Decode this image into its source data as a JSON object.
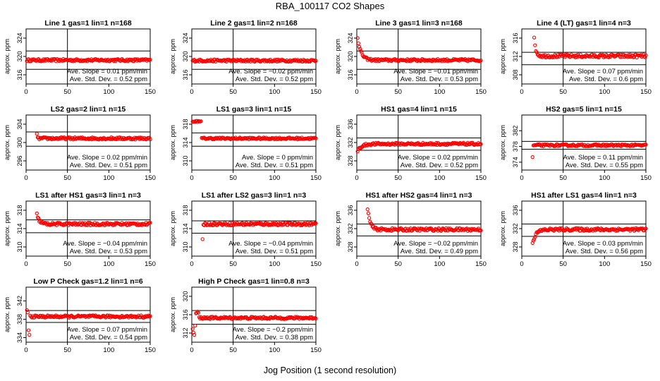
{
  "title": "RBA_100117  CO2 Shapes",
  "xlabel": "Jog Position (1 second resolution)",
  "ylabel": "approx. ppm",
  "colors": {
    "points": "#ff0000",
    "axes": "#000000",
    "background": "#ffffff"
  },
  "chart_data": [
    {
      "type": "scatter",
      "title": "Line 1 gas=1 lin=1 n=168",
      "xlim": [
        0,
        150
      ],
      "xticks": [
        0,
        50,
        100,
        150
      ],
      "ylim": [
        314,
        326
      ],
      "yticks": [
        316,
        320,
        324
      ],
      "hlines": [
        321.2,
        317.2
      ],
      "vline": 50,
      "slope_text": "Ave. Slope =  0.01  ppm/min",
      "std_text": "Ave. Std. Dev. =  0.52  ppm",
      "pattern": "flat",
      "start": 1,
      "level": 319.2,
      "noise": 0.25
    },
    {
      "type": "scatter",
      "title": "Line 2 gas=1 lin=2 n=168",
      "xlim": [
        0,
        150
      ],
      "xticks": [
        0,
        50,
        100,
        150
      ],
      "ylim": [
        314,
        326
      ],
      "yticks": [
        316,
        320,
        324
      ],
      "hlines": [
        321.2,
        317.2
      ],
      "vline": 50,
      "slope_text": "Ave. Slope =  −0.02  ppm/min",
      "std_text": "Ave. Std. Dev. =  0.52  ppm",
      "pattern": "flat",
      "start": 1,
      "level": 319.1,
      "noise": 0.25
    },
    {
      "type": "scatter",
      "title": "Line 3 gas=1 lin=3 n=168",
      "xlim": [
        0,
        150
      ],
      "xticks": [
        0,
        50,
        100,
        150
      ],
      "ylim": [
        314,
        326
      ],
      "yticks": [
        316,
        320,
        324
      ],
      "hlines": [
        321.2,
        317.2
      ],
      "vline": 50,
      "slope_text": "Ave. Slope =  −0.01  ppm/min",
      "std_text": "Ave. Std. Dev. =  0.53  ppm",
      "pattern": "decay",
      "start": 1,
      "level": 319.2,
      "noise": 0.25,
      "initial": 324.2,
      "tau": 4
    },
    {
      "type": "scatter",
      "title": "Line 4 (LT) gas=1 lin=4 n=3",
      "xlim": [
        0,
        150
      ],
      "xticks": [
        0,
        50,
        100,
        150
      ],
      "ylim": [
        306,
        318
      ],
      "yticks": [
        308,
        312,
        316
      ],
      "hlines": [
        312.9,
        310.2
      ],
      "vline": 50,
      "slope_text": "Ave. Slope =  0.07  ppm/min",
      "std_text": "Ave. Std. Dev. =  0.6  ppm",
      "pattern": "decay",
      "start": 15,
      "level": 312.1,
      "noise": 0.35,
      "initial": 315.8,
      "tau": 2
    },
    {
      "type": "scatter",
      "title": "LS2 gas=2 lin=1 n=15",
      "xlim": [
        0,
        150
      ],
      "xticks": [
        0,
        50,
        100,
        150
      ],
      "ylim": [
        294,
        306
      ],
      "yticks": [
        296,
        300,
        304
      ],
      "hlines": [
        302.3,
        299.2
      ],
      "vline": 50,
      "slope_text": "Ave. Slope =  0.02  ppm/min",
      "std_text": "Ave. Std. Dev. =  0.51  ppm",
      "pattern": "spike",
      "start": 13,
      "level": 300.9,
      "noise": 0.25,
      "initial": 301.9
    },
    {
      "type": "scatter",
      "title": "LS1 gas=3 lin=1 n=15",
      "xlim": [
        0,
        150
      ],
      "xticks": [
        0,
        50,
        100,
        150
      ],
      "ylim": [
        308,
        320
      ],
      "yticks": [
        310,
        314,
        318
      ],
      "hlines": [
        316.1,
        313.2
      ],
      "vline": 50,
      "slope_text": "Ave. Slope =  0  ppm/min",
      "std_text": "Ave. Std. Dev. =  0.51  ppm",
      "pattern": "step",
      "start": 1,
      "level": 314.9,
      "noise": 0.2,
      "initial": 318.6,
      "stepEnd": 11
    },
    {
      "type": "scatter",
      "title": "HS1 gas=4 lin=1 n=15",
      "xlim": [
        0,
        150
      ],
      "xticks": [
        0,
        50,
        100,
        150
      ],
      "ylim": [
        326,
        338
      ],
      "yticks": [
        328,
        332,
        336
      ],
      "hlines": [
        333.0,
        330.3
      ],
      "vline": 50,
      "slope_text": "Ave. Slope =  0.02  ppm/min",
      "std_text": "Ave. Std. Dev. =  0.52  ppm",
      "pattern": "rise",
      "start": 1,
      "level": 331.7,
      "noise": 0.25,
      "initial": 330.2,
      "tau": 5
    },
    {
      "type": "scatter",
      "title": "HS2 gas=5 lin=1 n=15",
      "xlim": [
        0,
        150
      ],
      "xticks": [
        0,
        50,
        100,
        150
      ],
      "ylim": [
        372,
        386
      ],
      "yticks": [
        374,
        378,
        382
      ],
      "hlines": [
        379.3,
        377.3
      ],
      "vline": 50,
      "slope_text": "Ave. Slope =  0.11  ppm/min",
      "std_text": "Ave. Std. Dev. =  0.55  ppm",
      "pattern": "spike",
      "start": 13,
      "level": 378.3,
      "noise": 0.25,
      "initial": 375.3
    },
    {
      "type": "scatter",
      "title": "LS1 after HS1 gas=3 lin=1 n=3",
      "xlim": [
        0,
        150
      ],
      "xticks": [
        0,
        50,
        100,
        150
      ],
      "ylim": [
        308,
        320
      ],
      "yticks": [
        310,
        314,
        318
      ],
      "hlines": [
        315.9,
        313.1
      ],
      "vline": 50,
      "slope_text": "Ave. Slope =  −0.04  ppm/min",
      "std_text": "Ave. Std. Dev. =  0.53  ppm",
      "pattern": "decay",
      "start": 13,
      "level": 315.0,
      "noise": 0.3,
      "initial": 317.1,
      "tau": 3
    },
    {
      "type": "scatter",
      "title": "LS1 after LS2 gas=3 lin=1 n=3",
      "xlim": [
        0,
        150
      ],
      "xticks": [
        0,
        50,
        100,
        150
      ],
      "ylim": [
        308,
        320
      ],
      "yticks": [
        310,
        314,
        318
      ],
      "hlines": [
        315.7,
        313.0
      ],
      "vline": 50,
      "slope_text": "Ave. Slope =  −0.04  ppm/min",
      "std_text": "Ave. Std. Dev. =  0.51  ppm",
      "pattern": "spike",
      "start": 13,
      "level": 315.0,
      "noise": 0.3,
      "initial": 311.7
    },
    {
      "type": "scatter",
      "title": "HS1 after HS2 gas=4 lin=1 n=3",
      "xlim": [
        0,
        150
      ],
      "xticks": [
        0,
        50,
        100,
        150
      ],
      "ylim": [
        326,
        338
      ],
      "yticks": [
        328,
        332,
        336
      ],
      "hlines": [
        333.0,
        330.4
      ],
      "vline": 50,
      "slope_text": "Ave. Slope =  −0.02  ppm/min",
      "std_text": "Ave. Std. Dev. =  0.49  ppm",
      "pattern": "decay",
      "start": 13,
      "level": 331.8,
      "noise": 0.3,
      "initial": 336.5,
      "tau": 3
    },
    {
      "type": "scatter",
      "title": "HS1 after LS1 gas=4 lin=1 n=3",
      "xlim": [
        0,
        150
      ],
      "xticks": [
        0,
        50,
        100,
        150
      ],
      "ylim": [
        326,
        338
      ],
      "yticks": [
        328,
        332,
        336
      ],
      "hlines": [
        333.0,
        330.3
      ],
      "vline": 50,
      "slope_text": "Ave. Slope =  0.03  ppm/min",
      "std_text": "Ave. Std. Dev. =  0.56  ppm",
      "pattern": "rise",
      "start": 13,
      "level": 331.8,
      "noise": 0.3,
      "initial": 328.8,
      "tau": 4
    },
    {
      "type": "scatter",
      "title": "Low P Check gas=1.2 lin=1 n=6",
      "xlim": [
        0,
        150
      ],
      "xticks": [
        0,
        50,
        100,
        150
      ],
      "ylim": [
        333,
        345
      ],
      "yticks": [
        334,
        338,
        342
      ],
      "hlines": [
        339.9,
        337.3
      ],
      "vline": 50,
      "slope_text": "Ave. Slope =  0.07  ppm/min",
      "std_text": "Ave. Std. Dev. =  0.54  ppm",
      "pattern": "lowp",
      "start": 1,
      "level": 338.6,
      "noise": 0.25,
      "initial": 340.0
    },
    {
      "type": "scatter",
      "title": "High P Check gas=1 lin=0.8 n=3",
      "xlim": [
        0,
        150
      ],
      "xticks": [
        0,
        50,
        100,
        150
      ],
      "ylim": [
        310,
        322
      ],
      "yticks": [
        312,
        316,
        320
      ],
      "hlines": [
        316.9,
        313.9
      ],
      "vline": 50,
      "slope_text": "Ave. Slope =  −0.2  ppm/min",
      "std_text": "Ave. Std. Dev. =  0.38  ppm",
      "pattern": "highp",
      "start": 1,
      "level": 315.3,
      "noise": 0.25,
      "initial": 316.4
    }
  ]
}
